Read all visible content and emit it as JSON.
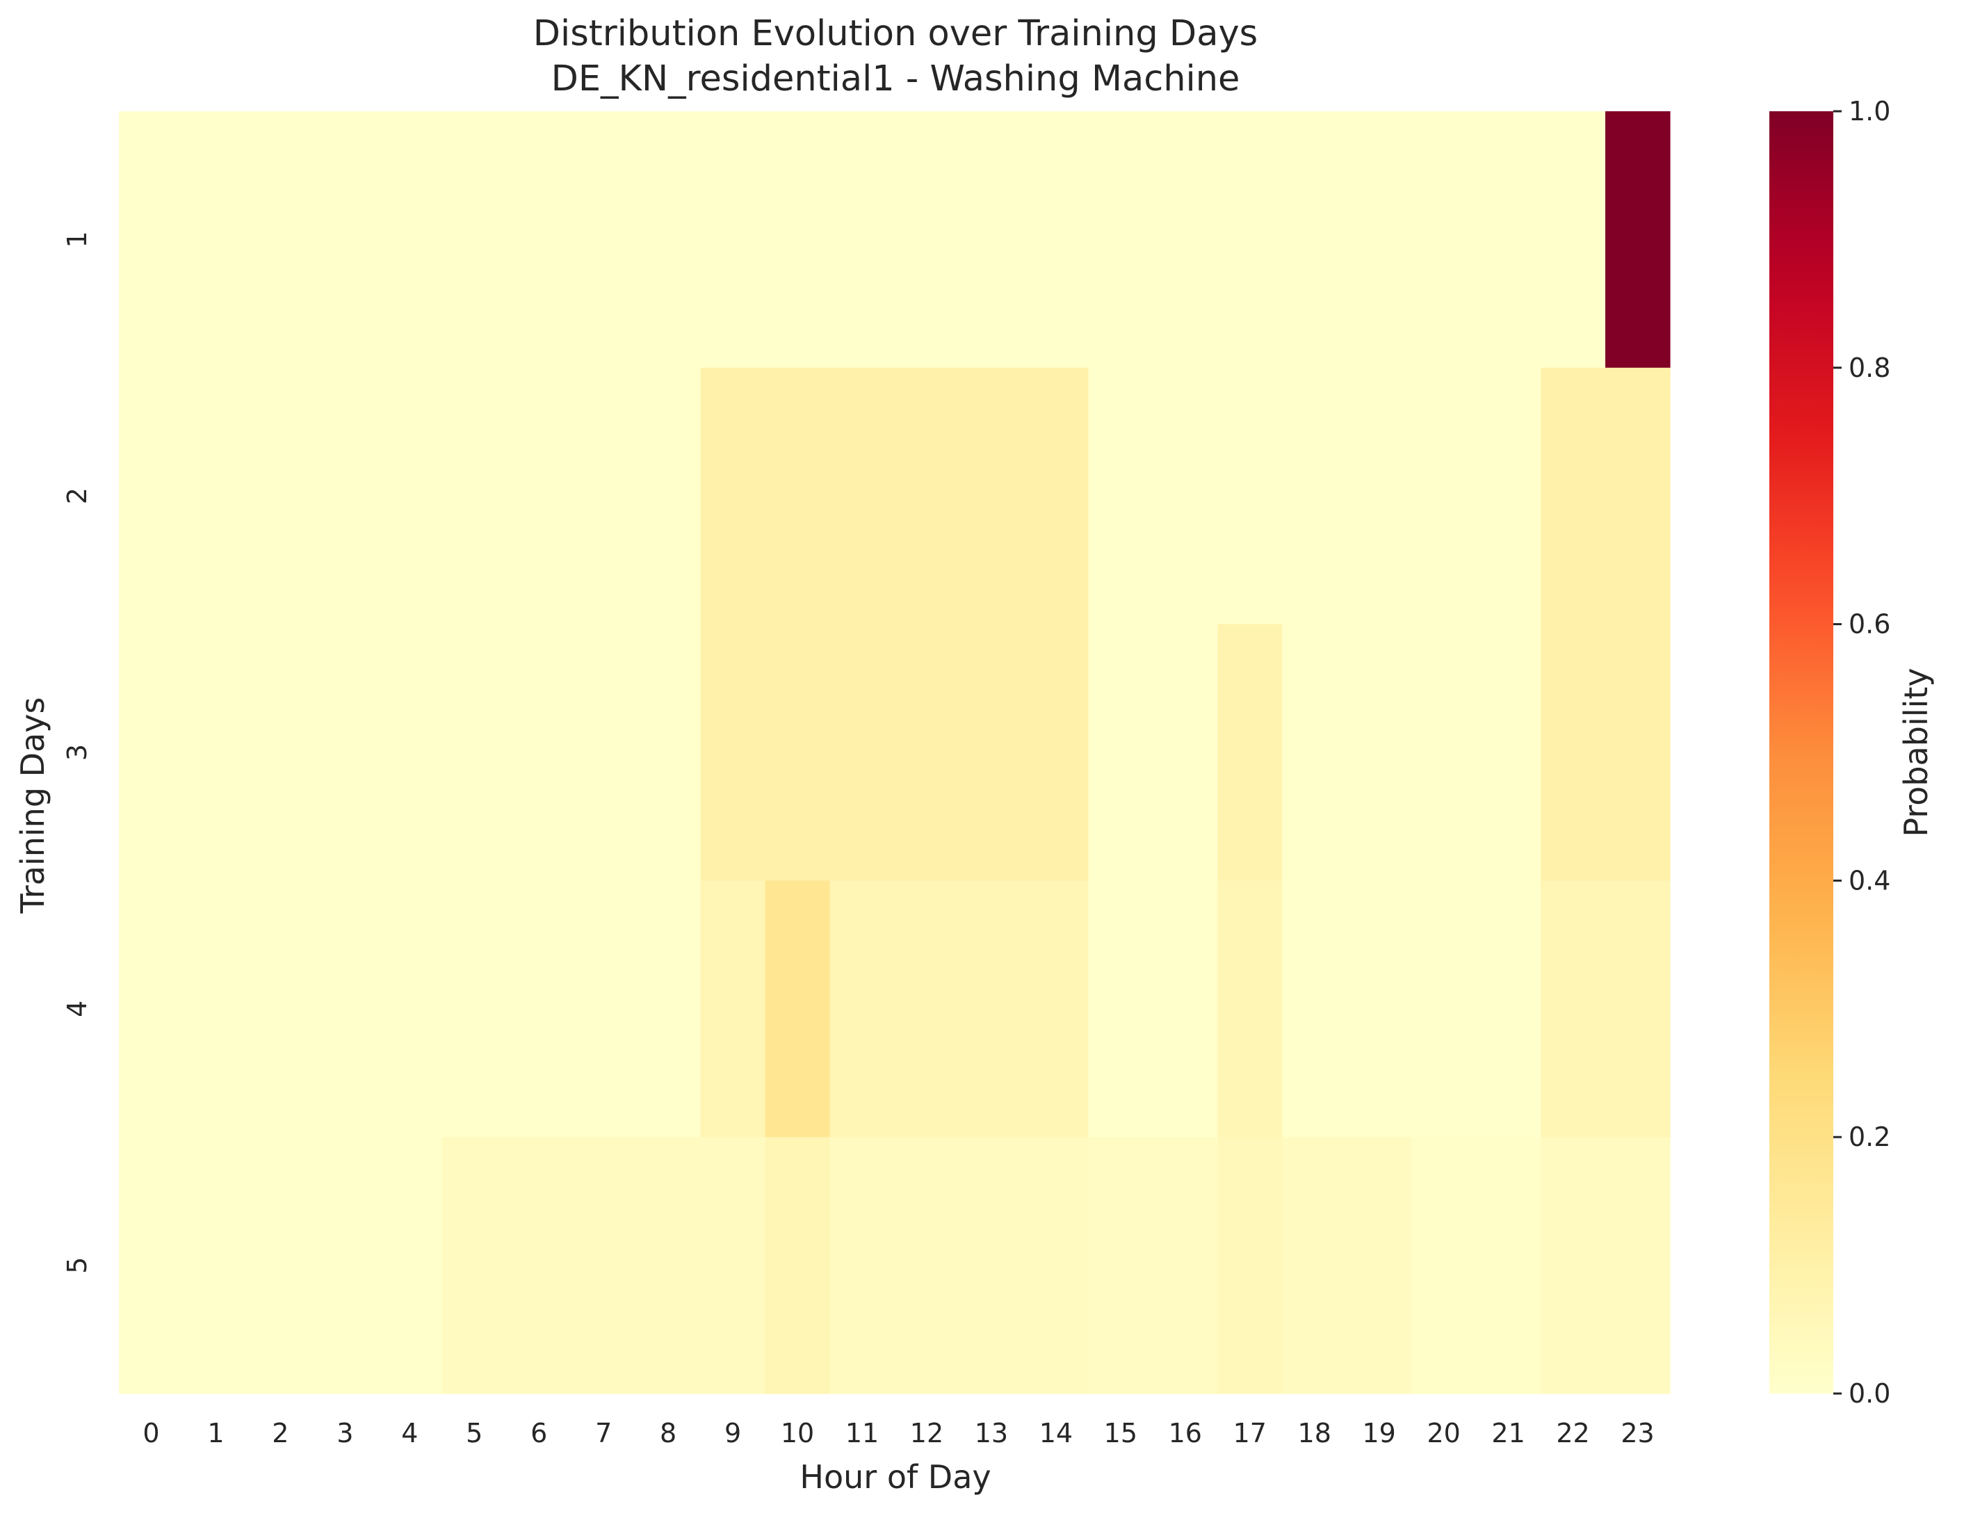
{
  "chart_data": {
    "type": "heatmap",
    "title": "Distribution Evolution over Training Days",
    "subtitle": "DE_KN_residential1 - Washing Machine",
    "xlabel": "Hour of Day",
    "ylabel": "Training Days",
    "x": [
      "0",
      "1",
      "2",
      "3",
      "4",
      "5",
      "6",
      "7",
      "8",
      "9",
      "10",
      "11",
      "12",
      "13",
      "14",
      "15",
      "16",
      "17",
      "18",
      "19",
      "20",
      "21",
      "22",
      "23"
    ],
    "y": [
      "1",
      "2",
      "3",
      "4",
      "5"
    ],
    "values": [
      [
        0,
        0,
        0,
        0,
        0,
        0,
        0,
        0,
        0,
        0,
        0,
        0,
        0,
        0,
        0,
        0,
        0,
        0,
        0,
        0,
        0,
        0,
        0,
        1.0
      ],
      [
        0,
        0,
        0,
        0,
        0,
        0,
        0,
        0,
        0,
        0.1,
        0.1,
        0.1,
        0.1,
        0.1,
        0.1,
        0,
        0,
        0,
        0,
        0,
        0,
        0,
        0.1,
        0.1
      ],
      [
        0,
        0,
        0,
        0,
        0,
        0,
        0,
        0,
        0,
        0.1,
        0.1,
        0.1,
        0.1,
        0.1,
        0.1,
        0,
        0,
        0.083,
        0,
        0,
        0,
        0,
        0.1,
        0.1
      ],
      [
        0,
        0,
        0,
        0,
        0,
        0,
        0,
        0,
        0,
        0.067,
        0.167,
        0.067,
        0.067,
        0.067,
        0.067,
        0,
        0,
        0.067,
        0,
        0,
        0,
        0,
        0.067,
        0.067
      ],
      [
        0,
        0,
        0,
        0,
        0,
        0.033,
        0.033,
        0.033,
        0.033,
        0.033,
        0.067,
        0.033,
        0.033,
        0.033,
        0.033,
        0.027,
        0.027,
        0.05,
        0.033,
        0.033,
        0.01,
        0.01,
        0.033,
        0.033
      ]
    ],
    "colorbar": {
      "label": "Probability",
      "range": [
        0,
        1
      ],
      "ticks": [
        "0.0",
        "0.2",
        "0.4",
        "0.6",
        "0.8",
        "1.0"
      ],
      "colormap": "YlOrRd"
    }
  }
}
